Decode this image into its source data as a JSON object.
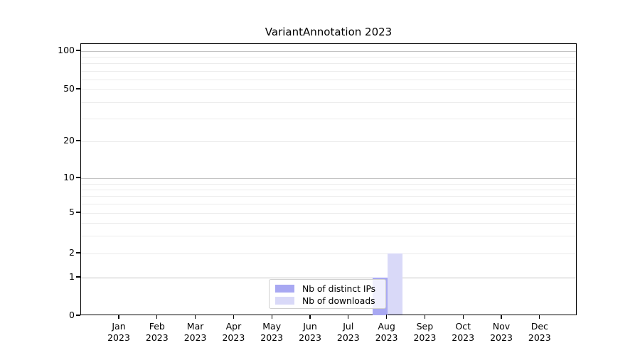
{
  "figure": {
    "title": "VariantAnnotation 2023"
  },
  "chart_data": {
    "type": "bar",
    "title": "VariantAnnotation 2023",
    "categories": [
      "Jan 2023",
      "Feb 2023",
      "Mar 2023",
      "Apr 2023",
      "May 2023",
      "Jun 2023",
      "Jul 2023",
      "Aug 2023",
      "Sep 2023",
      "Oct 2023",
      "Nov 2023",
      "Dec 2023"
    ],
    "series": [
      {
        "name": "Nb of distinct IPs",
        "color": "#a8a8f2",
        "values": [
          0,
          0,
          0,
          0,
          0,
          0,
          0,
          1,
          0,
          0,
          0,
          0
        ]
      },
      {
        "name": "Nb of downloads",
        "color": "#d9d9f8",
        "values": [
          0,
          0,
          0,
          0,
          0,
          0,
          0,
          2,
          0,
          0,
          0,
          0
        ]
      }
    ],
    "xlabel": "",
    "ylabel": "",
    "y_axis": {
      "scale": "log (zero pinned at baseline)",
      "tick_values": [
        0,
        1,
        2,
        5,
        10,
        20,
        50,
        100
      ],
      "minor_gridline_values": [
        3,
        4,
        6,
        7,
        8,
        9,
        30,
        40,
        60,
        70,
        80,
        90
      ],
      "range_top": 110
    },
    "grid": {
      "horizontal": true,
      "vertical": false
    },
    "legend_position": "inside bottom-center"
  },
  "legend": {
    "entries": [
      {
        "label": "Nb of distinct IPs",
        "color": "#a8a8f2"
      },
      {
        "label": "Nb of downloads",
        "color": "#d9d9f8"
      }
    ]
  },
  "colors": {
    "background": "#ffffff",
    "axis": "#000000",
    "major_gridline": "#c3c3c3",
    "minor_gridline": "#ececec",
    "distinct_ips_bar": "#a8a8f2",
    "downloads_bar": "#d9d9f8"
  }
}
